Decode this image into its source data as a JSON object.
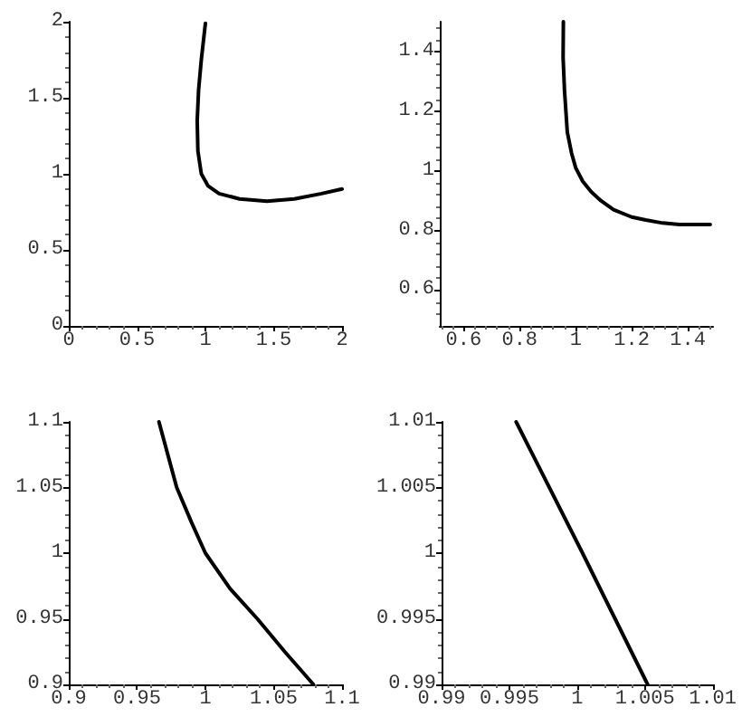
{
  "chart_data": [
    {
      "type": "line",
      "x": [
        1.0,
        0.97,
        0.95,
        0.94,
        0.945,
        0.97,
        1.02,
        1.1,
        1.25,
        1.45,
        1.65,
        1.85,
        2.0
      ],
      "values": [
        1.99,
        1.75,
        1.55,
        1.35,
        1.15,
        1.0,
        0.92,
        0.87,
        0.835,
        0.82,
        0.835,
        0.87,
        0.9
      ],
      "color": "#000000",
      "xlim": [
        0,
        2
      ],
      "ylim": [
        0,
        2
      ],
      "xticks": [
        0,
        0.5,
        1,
        1.5,
        2
      ],
      "yticks": [
        0,
        0.5,
        1,
        1.5,
        2
      ],
      "marker": "none",
      "line_style": "solid"
    },
    {
      "type": "line",
      "x": [
        0.956,
        0.955,
        0.96,
        0.97,
        0.985,
        1.0,
        1.025,
        1.055,
        1.09,
        1.135,
        1.2,
        1.25,
        1.31,
        1.37,
        1.43,
        1.48
      ],
      "values": [
        1.5,
        1.38,
        1.27,
        1.13,
        1.06,
        1.01,
        0.965,
        0.93,
        0.9,
        0.87,
        0.845,
        0.835,
        0.825,
        0.82,
        0.82,
        0.82
      ],
      "color": "#000000",
      "xlim": [
        0.515,
        1.49
      ],
      "ylim": [
        0.48,
        1.5
      ],
      "xticks": [
        0.6,
        0.8,
        1,
        1.2,
        1.4
      ],
      "yticks": [
        0.6,
        0.8,
        1,
        1.2,
        1.4
      ],
      "marker": "none",
      "line_style": "solid"
    },
    {
      "type": "line",
      "x": [
        0.966,
        0.979,
        0.99,
        1.0,
        1.018,
        1.038,
        1.058,
        1.079
      ],
      "values": [
        1.1,
        1.05,
        1.023,
        1.0,
        0.973,
        0.95,
        0.925,
        0.9
      ],
      "color": "#000000",
      "xlim": [
        0.9,
        1.1
      ],
      "ylim": [
        0.9,
        1.1
      ],
      "xticks": [
        0.9,
        0.95,
        1,
        1.05,
        1.1
      ],
      "yticks": [
        0.9,
        0.95,
        1,
        1.05,
        1.1
      ],
      "marker": "none",
      "line_style": "solid"
    },
    {
      "type": "line",
      "x": [
        0.9955,
        1.0004,
        1.0052
      ],
      "values": [
        1.01,
        1.0,
        0.99
      ],
      "color": "#000000",
      "xlim": [
        0.99,
        1.01
      ],
      "ylim": [
        0.99,
        1.01
      ],
      "xticks": [
        0.99,
        0.995,
        1,
        1.005,
        1.01
      ],
      "yticks": [
        0.99,
        0.995,
        1,
        1.005,
        1.01
      ],
      "marker": "none",
      "line_style": "solid"
    }
  ]
}
